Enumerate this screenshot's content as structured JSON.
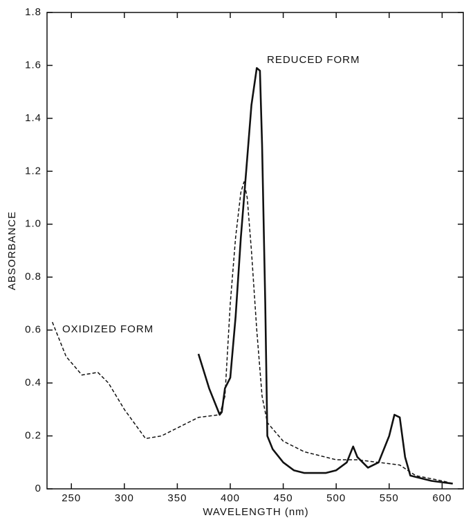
{
  "chart_data": {
    "type": "line",
    "xlabel": "WAVELENGTH (nm)",
    "ylabel": "ABSORBANCE",
    "xlim": [
      227,
      620
    ],
    "ylim": [
      0,
      1.8
    ],
    "xticks": [
      250,
      300,
      350,
      400,
      450,
      500,
      550,
      600
    ],
    "yticks": [
      0,
      0.2,
      0.4,
      0.6,
      0.8,
      {
        "value": 1,
        "label": "1.0"
      },
      1.2,
      1.4,
      1.6,
      1.8
    ],
    "grid": false,
    "series": [
      {
        "name": "REDUCED FORM",
        "color": "#111111",
        "line_style": "solid",
        "x": [
          370,
          380,
          390,
          392,
          395,
          400,
          405,
          410,
          415,
          420,
          425,
          428,
          430,
          433,
          435,
          440,
          450,
          460,
          470,
          490,
          500,
          510,
          516,
          520,
          530,
          540,
          550,
          555,
          560,
          565,
          570,
          590,
          610
        ],
        "values": [
          0.51,
          0.38,
          0.28,
          0.29,
          0.38,
          0.42,
          0.65,
          0.95,
          1.2,
          1.45,
          1.59,
          1.58,
          1.3,
          0.7,
          0.2,
          0.15,
          0.1,
          0.07,
          0.06,
          0.06,
          0.07,
          0.1,
          0.16,
          0.12,
          0.08,
          0.1,
          0.2,
          0.28,
          0.27,
          0.12,
          0.05,
          0.03,
          0.02
        ]
      },
      {
        "name": "OXIDIZED FORM",
        "color": "#111111",
        "line_style": "dashed",
        "x": [
          232,
          245,
          260,
          275,
          285,
          300,
          320,
          335,
          350,
          370,
          390,
          395,
          400,
          405,
          410,
          413,
          416,
          420,
          425,
          430,
          435,
          450,
          470,
          500,
          520,
          540,
          560,
          575,
          600,
          610
        ],
        "values": [
          0.63,
          0.5,
          0.43,
          0.44,
          0.4,
          0.3,
          0.19,
          0.2,
          0.23,
          0.27,
          0.28,
          0.35,
          0.7,
          0.95,
          1.12,
          1.16,
          1.1,
          0.9,
          0.6,
          0.35,
          0.25,
          0.18,
          0.14,
          0.11,
          0.11,
          0.1,
          0.09,
          0.05,
          0.03,
          0.02
        ]
      }
    ]
  }
}
